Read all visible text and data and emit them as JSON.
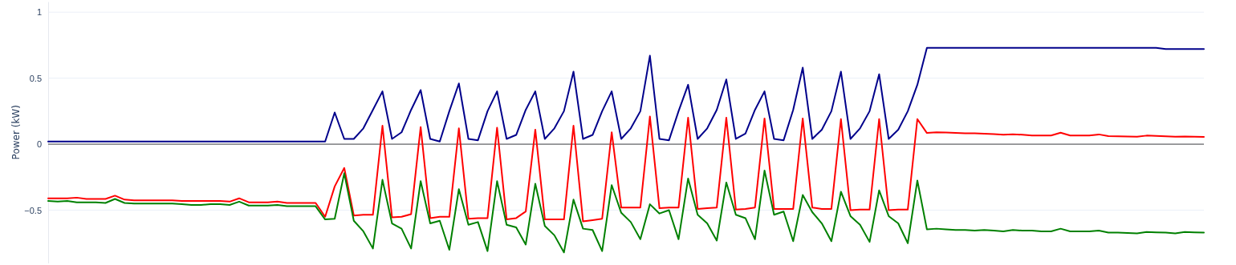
{
  "chart_data": {
    "type": "line",
    "ylabel": "Power (kW)",
    "categories": [
      null,
      null,
      null,
      null,
      null,
      null,
      null,
      null,
      null,
      null,
      null,
      null,
      null,
      null,
      null,
      null,
      null,
      null,
      null,
      null,
      null,
      null,
      null,
      null,
      null,
      null,
      null,
      null,
      null,
      null,
      null,
      null,
      null,
      null,
      null,
      null,
      null,
      null,
      null,
      null,
      null,
      null,
      null,
      null,
      null,
      null,
      null,
      null,
      null,
      null,
      null,
      null,
      null,
      null,
      null,
      null,
      null,
      null,
      null,
      null,
      null,
      null,
      null,
      null,
      null,
      null,
      null,
      null,
      null,
      null,
      null,
      null,
      null,
      null,
      null,
      null,
      null,
      null,
      null,
      null,
      null,
      null,
      null,
      null,
      null,
      null,
      null,
      null,
      null,
      null,
      null,
      null,
      null,
      null,
      null,
      null,
      null,
      null,
      null,
      null,
      null,
      null,
      null,
      null,
      null,
      null,
      null,
      null,
      null,
      null,
      null,
      null,
      null,
      null,
      null,
      null,
      null,
      null,
      null,
      null,
      null,
      null
    ],
    "series": [
      {
        "color": "#00008b",
        "values": [
          0.02,
          0.02,
          0.02,
          0.02,
          0.02,
          0.02,
          0.02,
          0.02,
          0.02,
          0.02,
          0.02,
          0.02,
          0.02,
          0.02,
          0.02,
          0.02,
          0.02,
          0.02,
          0.02,
          0.02,
          0.02,
          0.02,
          0.02,
          0.02,
          0.02,
          0.02,
          0.02,
          0.02,
          0.02,
          0.02,
          0.24,
          0.04,
          0.04,
          0.12,
          0.26,
          0.4,
          0.04,
          0.09,
          0.26,
          0.41,
          0.04,
          0.02,
          0.25,
          0.46,
          0.04,
          0.03,
          0.25,
          0.4,
          0.04,
          0.07,
          0.26,
          0.4,
          0.04,
          0.12,
          0.25,
          0.55,
          0.04,
          0.07,
          0.25,
          0.4,
          0.04,
          0.12,
          0.25,
          0.67,
          0.04,
          0.03,
          0.25,
          0.45,
          0.04,
          0.12,
          0.26,
          0.49,
          0.04,
          0.08,
          0.26,
          0.4,
          0.04,
          0.03,
          0.26,
          0.58,
          0.04,
          0.11,
          0.25,
          0.55,
          0.04,
          0.12,
          0.25,
          0.53,
          0.04,
          0.11,
          0.25,
          0.45,
          0.73,
          0.73,
          0.73,
          0.73,
          0.73,
          0.73,
          0.73,
          0.73,
          0.73,
          0.73,
          0.73,
          0.73,
          0.73,
          0.73,
          0.73,
          0.73,
          0.73,
          0.73,
          0.73,
          0.73,
          0.73,
          0.73,
          0.73,
          0.73,
          0.73,
          0.72,
          0.72,
          0.72,
          0.72,
          0.72
        ]
      },
      {
        "color": "#ff0000",
        "values": [
          -0.41,
          -0.41,
          -0.41,
          -0.405,
          -0.415,
          -0.415,
          -0.415,
          -0.39,
          -0.42,
          -0.425,
          -0.425,
          -0.425,
          -0.425,
          -0.425,
          -0.43,
          -0.43,
          -0.43,
          -0.43,
          -0.43,
          -0.435,
          -0.41,
          -0.44,
          -0.44,
          -0.44,
          -0.435,
          -0.445,
          -0.445,
          -0.445,
          -0.445,
          -0.55,
          -0.32,
          -0.18,
          -0.54,
          -0.535,
          -0.535,
          0.14,
          -0.555,
          -0.55,
          -0.53,
          0.13,
          -0.56,
          -0.55,
          -0.55,
          0.12,
          -0.565,
          -0.56,
          -0.56,
          0.125,
          -0.57,
          -0.56,
          -0.51,
          0.11,
          -0.57,
          -0.57,
          -0.57,
          0.14,
          -0.585,
          -0.575,
          -0.565,
          0.09,
          -0.48,
          -0.48,
          -0.48,
          0.21,
          -0.485,
          -0.48,
          -0.48,
          0.2,
          -0.49,
          -0.485,
          -0.48,
          0.2,
          -0.495,
          -0.49,
          -0.48,
          0.195,
          -0.49,
          -0.49,
          -0.49,
          0.195,
          -0.48,
          -0.49,
          -0.49,
          0.19,
          -0.5,
          -0.495,
          -0.495,
          0.19,
          -0.5,
          -0.495,
          -0.495,
          0.19,
          0.085,
          0.09,
          0.088,
          0.085,
          0.083,
          0.082,
          0.08,
          0.077,
          0.072,
          0.075,
          0.072,
          0.066,
          0.066,
          0.066,
          0.087,
          0.066,
          0.066,
          0.066,
          0.074,
          0.061,
          0.06,
          0.058,
          0.057,
          0.065,
          0.062,
          0.06,
          0.057,
          0.058,
          0.056,
          0.055
        ]
      },
      {
        "color": "#008000",
        "values": [
          -0.43,
          -0.435,
          -0.43,
          -0.44,
          -0.44,
          -0.44,
          -0.445,
          -0.415,
          -0.445,
          -0.45,
          -0.45,
          -0.45,
          -0.45,
          -0.45,
          -0.455,
          -0.46,
          -0.46,
          -0.455,
          -0.455,
          -0.46,
          -0.435,
          -0.465,
          -0.465,
          -0.465,
          -0.46,
          -0.47,
          -0.47,
          -0.47,
          -0.47,
          -0.57,
          -0.565,
          -0.22,
          -0.58,
          -0.66,
          -0.79,
          -0.27,
          -0.6,
          -0.64,
          -0.79,
          -0.28,
          -0.6,
          -0.58,
          -0.8,
          -0.34,
          -0.61,
          -0.59,
          -0.81,
          -0.28,
          -0.61,
          -0.63,
          -0.76,
          -0.3,
          -0.62,
          -0.69,
          -0.82,
          -0.42,
          -0.64,
          -0.65,
          -0.81,
          -0.31,
          -0.52,
          -0.59,
          -0.72,
          -0.455,
          -0.525,
          -0.5,
          -0.72,
          -0.26,
          -0.535,
          -0.6,
          -0.73,
          -0.29,
          -0.535,
          -0.56,
          -0.72,
          -0.2,
          -0.535,
          -0.51,
          -0.735,
          -0.385,
          -0.515,
          -0.6,
          -0.735,
          -0.36,
          -0.545,
          -0.61,
          -0.74,
          -0.35,
          -0.545,
          -0.6,
          -0.75,
          -0.275,
          -0.645,
          -0.64,
          -0.645,
          -0.65,
          -0.65,
          -0.655,
          -0.65,
          -0.655,
          -0.66,
          -0.65,
          -0.655,
          -0.655,
          -0.66,
          -0.66,
          -0.64,
          -0.66,
          -0.66,
          -0.66,
          -0.655,
          -0.67,
          -0.67,
          -0.672,
          -0.675,
          -0.665,
          -0.668,
          -0.67,
          -0.675,
          -0.665,
          -0.668,
          -0.67
        ]
      }
    ],
    "ylim": [
      -0.9,
      1.08
    ],
    "yticks": [
      {
        "value": -0.5,
        "label": "−0.5"
      },
      0,
      0.5,
      1
    ],
    "ref_lines": [
      {
        "axis": "y",
        "value": 0,
        "color": "#444444"
      }
    ],
    "grid": "y",
    "tick_labels": "y",
    "line_style": "solid",
    "marker": "none"
  }
}
